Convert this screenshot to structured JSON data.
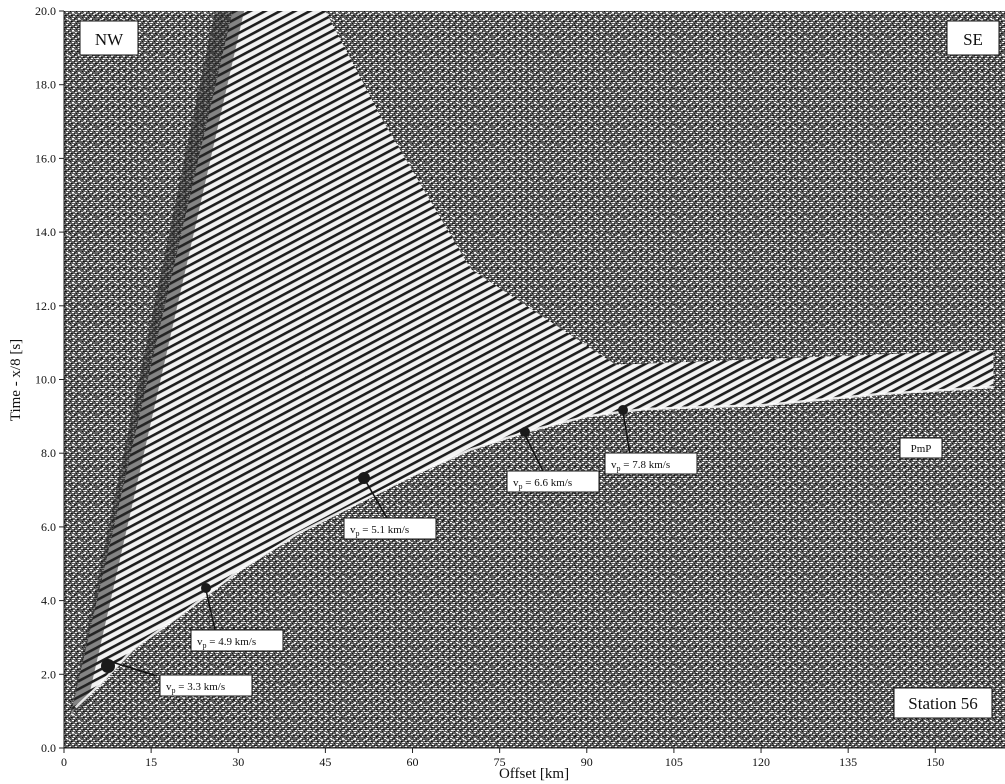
{
  "chart_data": {
    "type": "seismic-record-section",
    "xlabel": "Offset [km]",
    "ylabel": "Time - x/8 [s]",
    "xlim": [
      0,
      162
    ],
    "ylim": [
      0,
      20
    ],
    "x_ticks": [
      "0",
      "15",
      "30",
      "45",
      "60",
      "75",
      "90",
      "105",
      "120",
      "135",
      "150"
    ],
    "x_tick_values": [
      0,
      15,
      30,
      45,
      60,
      75,
      90,
      105,
      120,
      135,
      150
    ],
    "y_ticks": [
      "0.0",
      "2.0",
      "4.0",
      "6.0",
      "8.0",
      "10.0",
      "12.0",
      "14.0",
      "16.0",
      "18.0",
      "20.0"
    ],
    "y_tick_values": [
      0,
      2,
      4,
      6,
      8,
      10,
      12,
      14,
      16,
      18,
      20
    ],
    "corner_labels": {
      "left": "NW",
      "right": "SE",
      "station": "Station 56"
    },
    "first_arrival_curve": [
      {
        "x": 2,
        "y": 1.1
      },
      {
        "x": 6,
        "y": 1.7
      },
      {
        "x": 12,
        "y": 2.7
      },
      {
        "x": 20,
        "y": 3.6
      },
      {
        "x": 30,
        "y": 4.8
      },
      {
        "x": 40,
        "y": 5.8
      },
      {
        "x": 50,
        "y": 6.6
      },
      {
        "x": 60,
        "y": 7.4
      },
      {
        "x": 70,
        "y": 8.1
      },
      {
        "x": 80,
        "y": 8.6
      },
      {
        "x": 90,
        "y": 9.0
      },
      {
        "x": 100,
        "y": 9.2
      },
      {
        "x": 120,
        "y": 9.3
      },
      {
        "x": 140,
        "y": 9.6
      },
      {
        "x": 160,
        "y": 9.8
      }
    ],
    "annotations": [
      {
        "sub_main": "v",
        "sub": "p",
        "rest": " = 3.3 km/s",
        "x": 7,
        "y": 1.8
      },
      {
        "sub_main": "v",
        "sub": "p",
        "rest": " = 4.9 km/s",
        "x": 20,
        "y": 3.8
      },
      {
        "sub_main": "v",
        "sub": "p",
        "rest": " = 5.1 km/s",
        "x": 53,
        "y": 7.2
      },
      {
        "sub_main": "v",
        "sub": "p",
        "rest": " = 6.6 km/s",
        "x": 80,
        "y": 8.5
      },
      {
        "sub_main": "v",
        "sub": "p",
        "rest": " = 7.8 km/s",
        "x": 96,
        "y": 9.0
      },
      {
        "sub_main": "",
        "sub": "",
        "rest": "PmP",
        "x": null,
        "y": null
      }
    ]
  }
}
